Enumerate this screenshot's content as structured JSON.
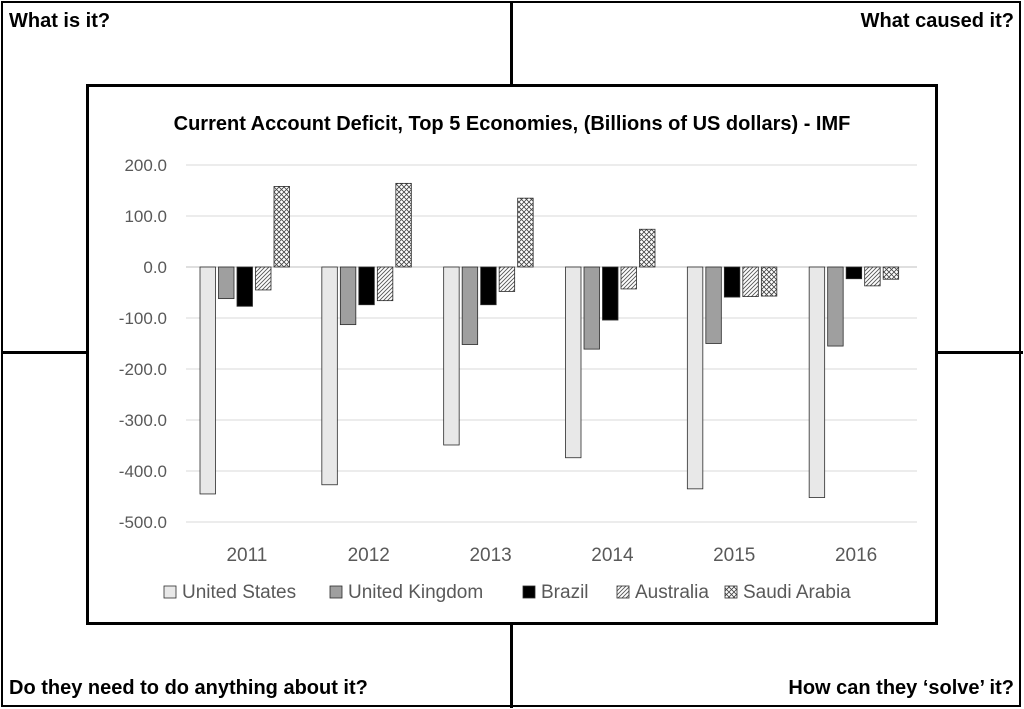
{
  "prompts": {
    "top_left": "What is it?",
    "top_right": "What caused it?",
    "bottom_left": "Do they need to do anything about it?",
    "bottom_right": "How can they ‘solve’ it?"
  },
  "chart_data": {
    "type": "bar",
    "title": "Current Account Deficit, Top 5 Economies, (Billions of US dollars) - IMF",
    "xlabel": "",
    "ylabel": "",
    "categories": [
      "2011",
      "2012",
      "2013",
      "2014",
      "2015",
      "2016"
    ],
    "ylim": [
      -500,
      200
    ],
    "yticks": [
      200,
      100,
      0,
      -100,
      -200,
      -300,
      -400,
      -500
    ],
    "ytick_labels": [
      "200.0",
      "100.0",
      "0.0",
      "-100.0",
      "-200.0",
      "-300.0",
      "-400.0",
      "-500.0"
    ],
    "grid": true,
    "legend_position": "bottom",
    "series": [
      {
        "name": "United States",
        "fill": "solid-light-gray",
        "color": "#e8e8e8",
        "values": [
          -445,
          -427,
          -349,
          -374,
          -435,
          -452
        ]
      },
      {
        "name": "United Kingdom",
        "fill": "solid-gray",
        "color": "#9f9f9f",
        "values": [
          -62,
          -113,
          -152,
          -161,
          -150,
          -155
        ]
      },
      {
        "name": "Brazil",
        "fill": "solid-black",
        "color": "#000000",
        "values": [
          -77,
          -74,
          -74,
          -104,
          -59,
          -23
        ]
      },
      {
        "name": "Australia",
        "fill": "diagonal-hatch",
        "color": "#d8d8d8",
        "values": [
          -45,
          -66,
          -48,
          -43,
          -58,
          -37
        ]
      },
      {
        "name": "Saudi Arabia",
        "fill": "cross-hatch",
        "color": "#d8d8d8",
        "values": [
          158,
          164,
          135,
          74,
          -57,
          -24
        ]
      }
    ]
  }
}
